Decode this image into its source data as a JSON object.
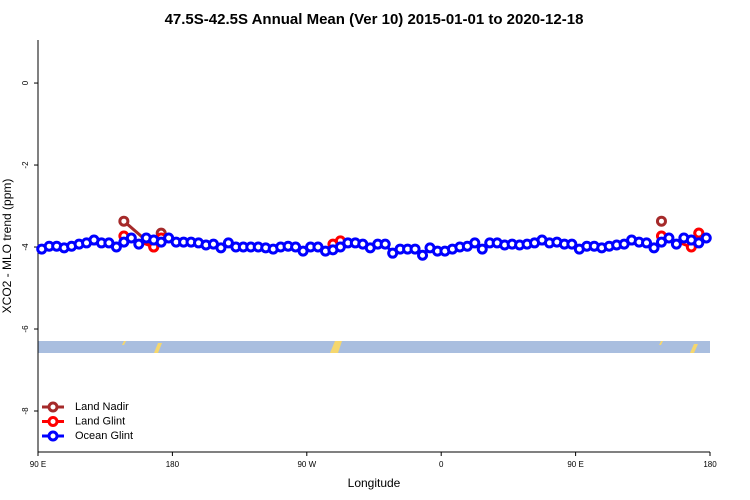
{
  "chart_data": {
    "type": "line",
    "title": "47.5S-42.5S Annual Mean (Ver 10)   2015-01-01 to 2020-12-18",
    "x_label": "Longitude",
    "y_label": "XCO2 - MLO trend (ppm)",
    "xlim": [
      90,
      540
    ],
    "ylim": [
      -9,
      1.05
    ],
    "xticks": [
      {
        "value": 90,
        "label": "90 E"
      },
      180,
      {
        "value": 270,
        "label": "90 W"
      },
      {
        "value": 360,
        "label": "0"
      },
      {
        "value": 450,
        "label": "90 E"
      },
      {
        "value": 540,
        "label": "180"
      }
    ],
    "yticks": [
      0,
      -2,
      -4,
      -6,
      -8
    ],
    "legend": "bottom-left",
    "series": [
      {
        "name": "Land Nadir",
        "color": "#a52a2a",
        "x": [
          147.5,
          167.5,
          172.5,
          507.5,
          532.5
        ],
        "values": [
          -3.37,
          -4.0,
          -3.66,
          -3.37,
          -3.66
        ]
      },
      {
        "name": "Land Glint",
        "color": "#ff0000",
        "x": [
          147.5,
          167.5,
          172.5,
          287.5,
          292.5,
          507.5,
          527.5,
          532.5
        ],
        "values": [
          -3.73,
          -4.0,
          -3.78,
          -3.93,
          -3.85,
          -3.73,
          -4.0,
          -3.66
        ]
      },
      {
        "name": "Ocean Glint",
        "color": "#0000ff",
        "x": [
          92.5,
          97.5,
          102.5,
          107.5,
          112.5,
          117.5,
          122.5,
          127.5,
          132.5,
          137.5,
          142.5,
          147.5,
          152.5,
          157.5,
          162.5,
          167.5,
          172.5,
          177.5,
          182.5,
          187.5,
          192.5,
          197.5,
          202.5,
          207.5,
          212.5,
          217.5,
          222.5,
          227.5,
          232.5,
          237.5,
          242.5,
          247.5,
          252.5,
          257.5,
          262.5,
          267.5,
          272.5,
          277.5,
          282.5,
          287.5,
          292.5,
          297.5,
          302.5,
          307.5,
          312.5,
          317.5,
          322.5,
          327.5,
          332.5,
          337.5,
          342.5,
          347.5,
          352.5,
          357.5,
          362.5,
          367.5,
          372.5,
          377.5,
          382.5,
          387.5,
          392.5,
          397.5,
          402.5,
          407.5,
          412.5,
          417.5,
          422.5,
          427.5,
          432.5,
          437.5,
          442.5,
          447.5,
          452.5,
          457.5,
          462.5,
          467.5,
          472.5,
          477.5,
          482.5,
          487.5,
          492.5,
          497.5,
          502.5,
          507.5,
          512.5,
          517.5,
          522.5,
          527.5,
          532.5,
          537.5
        ],
        "values": [
          -4.05,
          -3.98,
          -3.98,
          -4.02,
          -3.98,
          -3.93,
          -3.9,
          -3.83,
          -3.9,
          -3.9,
          -4.0,
          -3.88,
          -3.78,
          -3.93,
          -3.78,
          -3.83,
          -3.88,
          -3.78,
          -3.88,
          -3.88,
          -3.88,
          -3.9,
          -3.95,
          -3.93,
          -4.02,
          -3.9,
          -4.0,
          -4.0,
          -4.0,
          -4.0,
          -4.02,
          -4.05,
          -4.0,
          -3.98,
          -4.0,
          -4.1,
          -4.0,
          -4.0,
          -4.1,
          -4.07,
          -4.0,
          -3.9,
          -3.9,
          -3.93,
          -4.02,
          -3.93,
          -3.93,
          -4.15,
          -4.05,
          -4.05,
          -4.05,
          -4.2,
          -4.02,
          -4.1,
          -4.1,
          -4.05,
          -4.0,
          -3.98,
          -3.9,
          -4.05,
          -3.9,
          -3.9,
          -3.95,
          -3.93,
          -3.95,
          -3.93,
          -3.9,
          -3.83,
          -3.9,
          -3.88,
          -3.93,
          -3.93,
          -4.05,
          -3.98,
          -3.98,
          -4.02,
          -3.98,
          -3.95,
          -3.93,
          -3.83,
          -3.88,
          -3.9,
          -4.02,
          -3.88,
          -3.78,
          -3.93,
          -3.78,
          -3.83,
          -3.9,
          -3.78
        ]
      }
    ]
  }
}
